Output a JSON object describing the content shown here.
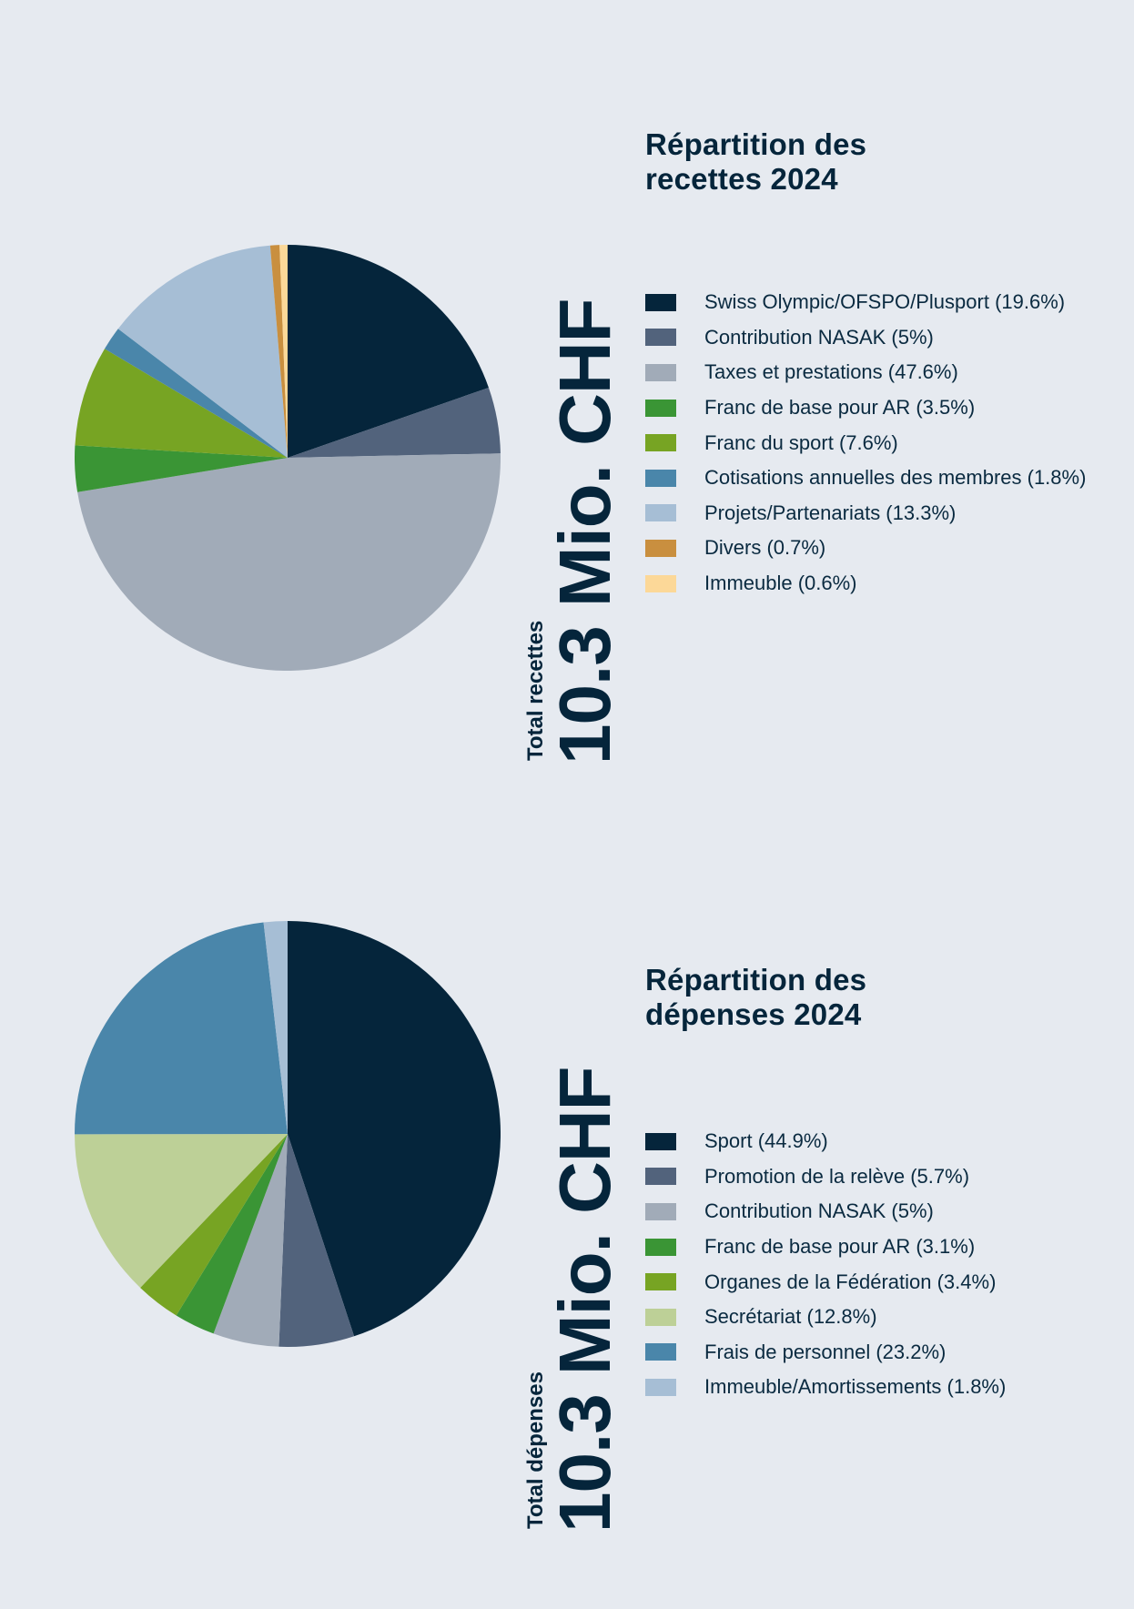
{
  "chart_data": [
    {
      "type": "pie",
      "title": [
        "Répartition des",
        "recettes 2024"
      ],
      "total_label": "Total recettes",
      "total_value": "10.3 Mio. CHF",
      "slices": [
        {
          "label": "Swiss Olympic/OFSPO/Plusport (19.6%)",
          "value": 19.6,
          "color": "#05253b"
        },
        {
          "label": "Contribution NASAK (5%)",
          "value": 5.0,
          "color": "#52637c"
        },
        {
          "label": "Taxes et prestations (47.6%)",
          "value": 47.6,
          "color": "#a1abb8"
        },
        {
          "label": "Franc de base pour AR (3.5%)",
          "value": 3.5,
          "color": "#3a9535"
        },
        {
          "label": "Franc du sport (7.6%)",
          "value": 7.6,
          "color": "#77a423"
        },
        {
          "label": "Cotisations annuelles des membres (1.8%)",
          "value": 1.8,
          "color": "#4a86aa"
        },
        {
          "label": "Projets/Partenariats (13.3%)",
          "value": 13.3,
          "color": "#a6bed5"
        },
        {
          "label": "Divers (0.7%)",
          "value": 0.7,
          "color": "#c98f3f"
        },
        {
          "label": "Immeuble (0.6%)",
          "value": 0.6,
          "color": "#fcd898"
        }
      ]
    },
    {
      "type": "pie",
      "title": [
        "Répartition des",
        "dépenses 2024"
      ],
      "total_label": "Total dépenses",
      "total_value": "10.3 Mio. CHF",
      "slices": [
        {
          "label": "Sport (44.9%)",
          "value": 44.9,
          "color": "#05253b"
        },
        {
          "label": "Promotion de la relève (5.7%)",
          "value": 5.7,
          "color": "#52637c"
        },
        {
          "label": "Contribution NASAK (5%)",
          "value": 5.0,
          "color": "#a1abb8"
        },
        {
          "label": "Franc de base pour AR (3.1%)",
          "value": 3.1,
          "color": "#3a9535"
        },
        {
          "label": "Organes de la Fédération (3.4%)",
          "value": 3.4,
          "color": "#77a423"
        },
        {
          "label": "Secrétariat (12.8%)",
          "value": 12.8,
          "color": "#bdd097"
        },
        {
          "label": "Frais de personnel (23.2%)",
          "value": 23.2,
          "color": "#4a86aa"
        },
        {
          "label": "Immeuble/Amortissements (1.8%)",
          "value": 1.8,
          "color": "#a6bed5"
        }
      ]
    }
  ]
}
